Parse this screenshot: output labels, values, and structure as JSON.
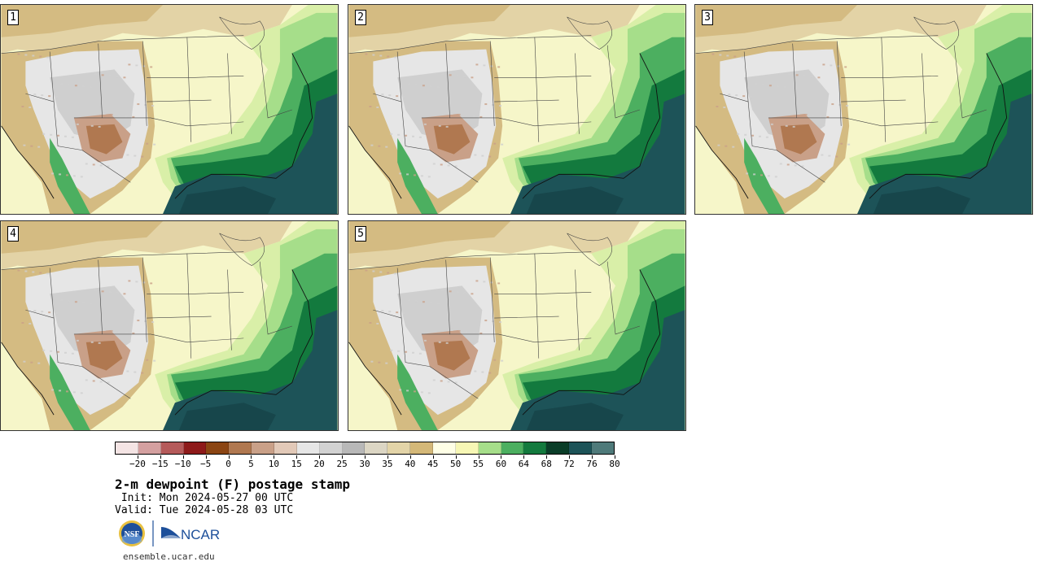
{
  "panels": [
    {
      "label": "1"
    },
    {
      "label": "2"
    },
    {
      "label": "3"
    },
    {
      "label": "4"
    },
    {
      "label": "5"
    }
  ],
  "colorbar": {
    "colors": [
      "#f4e4e4",
      "#d4a0a0",
      "#b55a5a",
      "#8e1a1a",
      "#8b4513",
      "#b07850",
      "#c9a088",
      "#e2c9b8",
      "#e6e6e6",
      "#d2d2d2",
      "#b8b8b8",
      "#dcd6c4",
      "#e3d4a8",
      "#d4b878",
      "#ffffe6",
      "#f7f7b5",
      "#a6de8a",
      "#4caf60",
      "#137a3e",
      "#0a3d28",
      "#1d5358",
      "#4f7a7a"
    ],
    "ticks": [
      "−20",
      "−15",
      "−10",
      "−5",
      "0",
      "5",
      "10",
      "15",
      "20",
      "25",
      "30",
      "35",
      "40",
      "45",
      "50",
      "55",
      "60",
      "64",
      "68",
      "72",
      "76",
      "80"
    ]
  },
  "title": "2-m dewpoint (F) postage stamp",
  "init_line": " Init: Mon 2024-05-27 00 UTC",
  "valid_line": "Valid: Tue 2024-05-28 03 UTC",
  "logos": {
    "nsf": "NSF",
    "ncar": "NCAR"
  },
  "website": "ensemble.ucar.edu"
}
